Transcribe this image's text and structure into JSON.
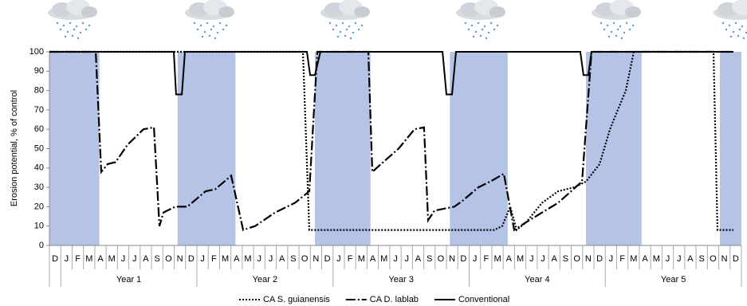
{
  "chart_data": {
    "type": "line",
    "y_label": "Erosion potential, % of control",
    "categories": [
      "D",
      "J",
      "F",
      "M",
      "A",
      "M",
      "J",
      "J",
      "A",
      "S",
      "O",
      "N",
      "D",
      "J",
      "F",
      "M",
      "A",
      "M",
      "J",
      "J",
      "A",
      "S",
      "O",
      "N",
      "D",
      "J",
      "F",
      "M",
      "A",
      "M",
      "J",
      "J",
      "A",
      "S",
      "O",
      "N",
      "D",
      "J",
      "F",
      "M",
      "A",
      "M",
      "J",
      "J",
      "A",
      "S",
      "O",
      "N",
      "D",
      "J",
      "F",
      "M",
      "A",
      "M",
      "J",
      "J",
      "A",
      "S",
      "O",
      "N",
      "D"
    ],
    "years": [
      "Year 1",
      "Year 2",
      "Year 3",
      "Year 4",
      "Year 5"
    ],
    "xlim": [
      -0.5,
      60.5
    ],
    "ylim": [
      0,
      100
    ],
    "yticks": [
      0,
      10,
      20,
      30,
      40,
      50,
      60,
      70,
      80,
      90,
      100
    ],
    "shaded_periods": [
      [
        -0.5,
        3.9
      ],
      [
        10.8,
        15.9
      ],
      [
        22.9,
        27.8
      ],
      [
        34.8,
        39.9
      ],
      [
        46.8,
        51.7
      ],
      [
        58.6,
        60.5
      ]
    ],
    "shade_color": "#b4c3e6",
    "series": [
      {
        "name": "CA S. guianensis",
        "color": "#000000",
        "dash": "dotted",
        "x": [
          -0.5,
          21.85,
          22.41,
          38.71,
          39.41,
          40.12,
          40.68,
          41.53,
          42.93,
          44.34,
          45.74,
          46.8,
          48.0,
          48.91,
          49.6,
          50.31,
          51.01,
          58.04,
          58.39,
          59.8
        ],
        "values": [
          100,
          100,
          8,
          8,
          10,
          20,
          8,
          12,
          22,
          28,
          30,
          33,
          42,
          60,
          70,
          80,
          100,
          100,
          8,
          8
        ]
      },
      {
        "name": "CA D. lablab",
        "color": "#000000",
        "dash": "dashdot",
        "x": [
          -0.5,
          3.58,
          4.07,
          4.63,
          5.33,
          6.39,
          7.79,
          8.71,
          9.2,
          9.55,
          10.6,
          11.66,
          13.27,
          14.12,
          15.52,
          16.58,
          17.63,
          19.39,
          21.15,
          22.41,
          23.12,
          27.61,
          27.96,
          28.73,
          30.28,
          31.68,
          32.52,
          32.88,
          33.44,
          35.19,
          35.9,
          37.31,
          38.36,
          39.56,
          40.47,
          41.53,
          42.93,
          44.34,
          46.45,
          47.29,
          59.8
        ],
        "values": [
          100,
          100,
          38,
          42,
          43,
          52,
          60,
          61,
          10,
          17,
          20,
          20,
          28,
          29,
          36,
          8,
          10,
          17,
          22,
          28,
          100,
          100,
          38,
          42,
          50,
          60,
          61,
          13,
          18,
          20,
          23,
          30,
          33,
          37,
          8,
          12,
          17,
          22,
          33,
          100,
          100
        ]
      },
      {
        "name": "Conventional",
        "color": "#000000",
        "dash": "solid",
        "x": [
          -0.5,
          10.46,
          10.67,
          11.17,
          11.45,
          22.2,
          22.48,
          22.9,
          23.39,
          34.15,
          34.5,
          34.99,
          35.34,
          46.3,
          46.58,
          47.0,
          47.29,
          59.8
        ],
        "values": [
          100,
          100,
          78,
          78,
          100,
          100,
          88,
          88,
          100,
          100,
          78,
          78,
          100,
          100,
          88,
          88,
          100,
          100
        ]
      }
    ]
  }
}
